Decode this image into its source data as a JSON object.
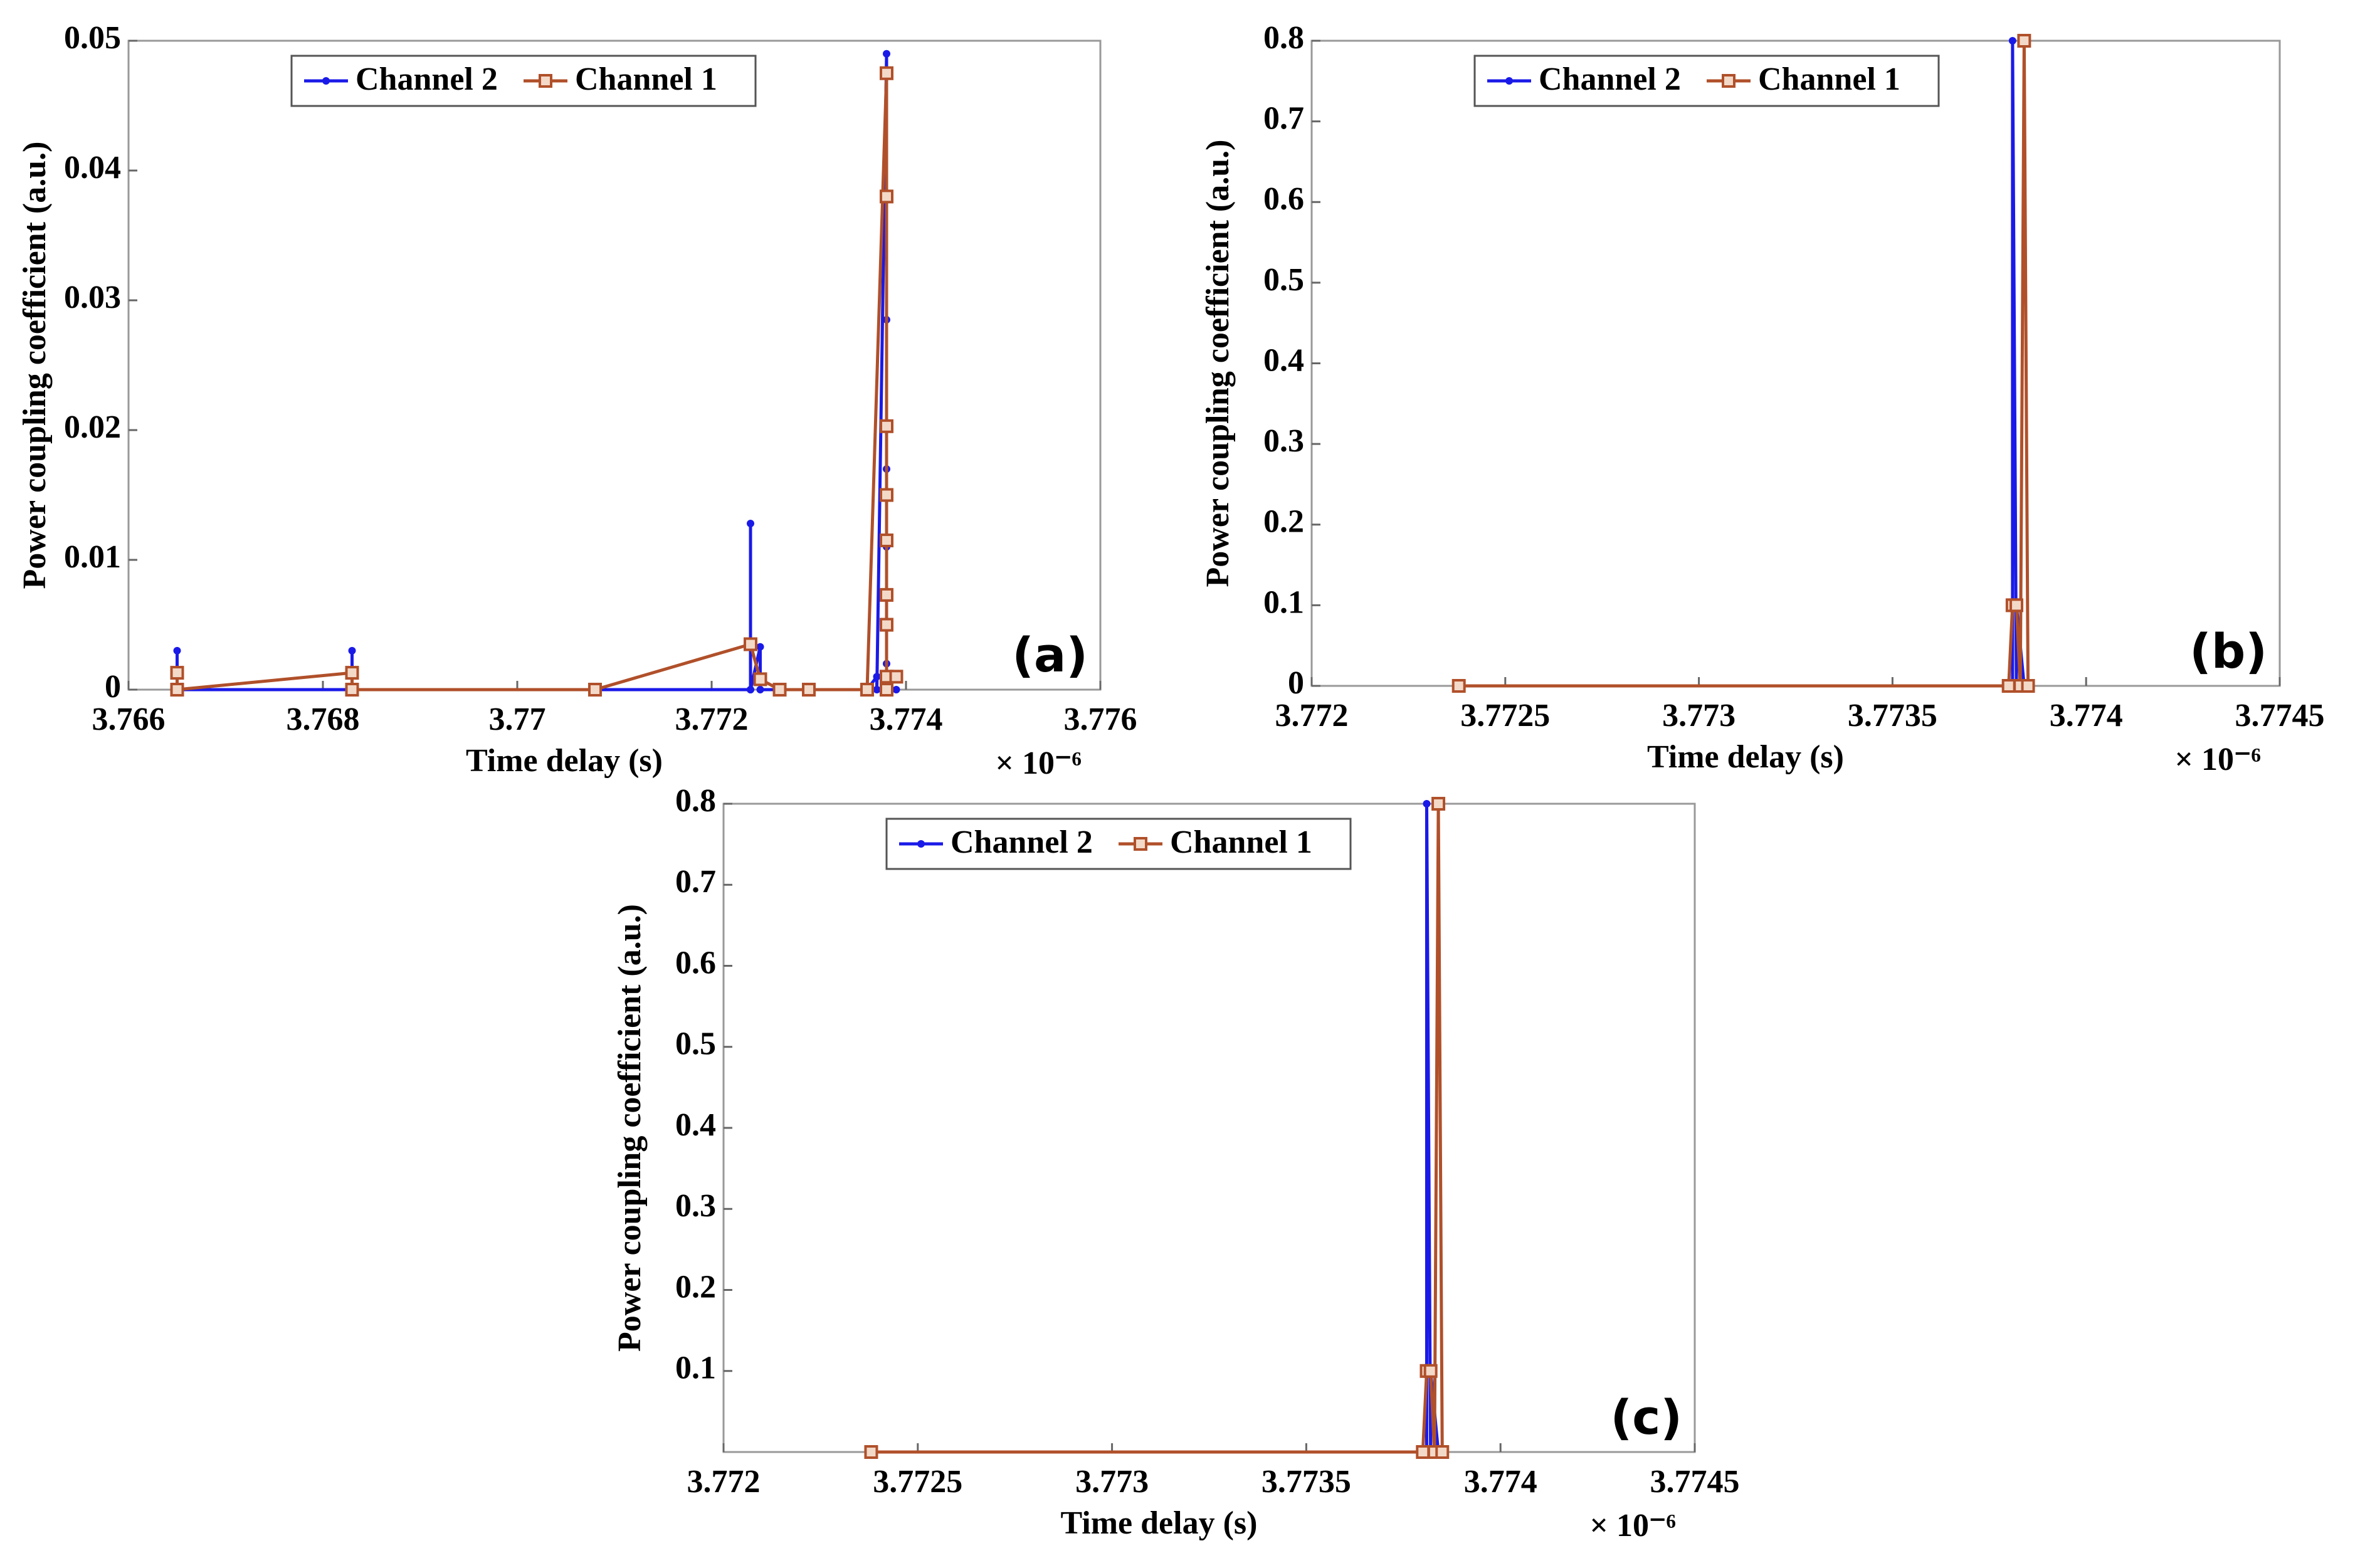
{
  "chart_data": [
    {
      "type": "line",
      "xlabel": "Time delay (s)",
      "ylabel": "Power coupling coefficient (a.u.)",
      "x_multiplier": "× 10⁻⁶",
      "panel_label": "(a)",
      "xlim": [
        3.766,
        3.776
      ],
      "xticks": [
        3.766,
        3.768,
        3.77,
        3.772,
        3.774,
        3.776
      ],
      "ylim": [
        0,
        0.05
      ],
      "yticks": [
        0,
        0.01,
        0.02,
        0.03,
        0.04,
        0.05
      ],
      "grid": false,
      "legend": "top",
      "series": [
        {
          "name": "Channel 2",
          "color": "#1a1ae8",
          "marker": "dot",
          "x": [
            3.7665,
            3.7665,
            3.7665,
            3.7683,
            3.7683,
            3.7683,
            3.7708,
            3.7724,
            3.7724,
            3.7724,
            3.7725,
            3.7725,
            3.7727,
            3.773,
            3.7736,
            3.7737,
            3.7737,
            3.7738,
            3.7738,
            3.7738,
            3.7738,
            3.7738,
            3.7738,
            3.7738,
            3.7739
          ],
          "values": [
            0,
            0.003,
            0,
            0,
            0.003,
            0,
            0,
            0,
            0.0128,
            0,
            0.0033,
            0,
            0,
            0,
            0,
            0.001,
            0,
            0.049,
            0.0285,
            0.017,
            0.011,
            0.005,
            0.002,
            0,
            0
          ]
        },
        {
          "name": "Channel 1",
          "color": "#b0502a",
          "marker": "square",
          "x": [
            3.7665,
            3.7665,
            3.7683,
            3.7683,
            3.7708,
            3.7724,
            3.7725,
            3.7727,
            3.773,
            3.7736,
            3.7738,
            3.7738,
            3.7738,
            3.7738,
            3.7738,
            3.7738,
            3.7738,
            3.7738,
            3.7738,
            3.7739
          ],
          "values": [
            0.0013,
            0,
            0.0013,
            0,
            0,
            0.0035,
            0.0008,
            0,
            0,
            0,
            0.0475,
            0.038,
            0.0203,
            0.015,
            0.0115,
            0.0073,
            0.005,
            0.001,
            0,
            0.001
          ]
        }
      ]
    },
    {
      "type": "line",
      "xlabel": "Time delay (s)",
      "ylabel": "Power coupling coefficient (a.u.)",
      "x_multiplier": "× 10⁻⁶",
      "panel_label": "(b)",
      "xlim": [
        3.772,
        3.7745
      ],
      "xticks": [
        3.772,
        3.7725,
        3.773,
        3.7735,
        3.774,
        3.7745
      ],
      "ylim": [
        0,
        0.8
      ],
      "yticks": [
        0,
        0.1,
        0.2,
        0.3,
        0.4,
        0.5,
        0.6,
        0.7,
        0.8
      ],
      "grid": false,
      "legend": "top",
      "series": [
        {
          "name": "Channel 2",
          "color": "#1a1ae8",
          "marker": "dot",
          "x": [
            3.77238,
            3.77381,
            3.77381,
            3.77382,
            3.77382,
            3.77384
          ],
          "values": [
            0,
            0,
            0.8,
            0,
            0.1,
            0
          ]
        },
        {
          "name": "Channel 1",
          "color": "#b0502a",
          "marker": "square",
          "x": [
            3.77238,
            3.7738,
            3.77381,
            3.77382,
            3.77383,
            3.77384,
            3.77385
          ],
          "values": [
            0,
            0,
            0.1,
            0.1,
            0,
            0.8,
            0
          ]
        }
      ]
    },
    {
      "type": "line",
      "xlabel": "Time delay (s)",
      "ylabel": "Power coupling coefficient (a.u.)",
      "x_multiplier": "× 10⁻⁶",
      "panel_label": "(c)",
      "xlim": [
        3.772,
        3.7745
      ],
      "xticks": [
        3.772,
        3.7725,
        3.773,
        3.7735,
        3.774,
        3.7745
      ],
      "ylim": [
        0,
        0.8
      ],
      "yticks": [
        0.1,
        0.2,
        0.3,
        0.4,
        0.5,
        0.6,
        0.7,
        0.8
      ],
      "grid": false,
      "legend": "top",
      "series": [
        {
          "name": "Channel 2",
          "color": "#1a1ae8",
          "marker": "dot",
          "x": [
            3.77238,
            3.77381,
            3.77381,
            3.77382,
            3.77382,
            3.77384
          ],
          "values": [
            0,
            0,
            0.8,
            0,
            0.1,
            0
          ]
        },
        {
          "name": "Channel 1",
          "color": "#b0502a",
          "marker": "square",
          "x": [
            3.77238,
            3.7738,
            3.77381,
            3.77382,
            3.77383,
            3.77384,
            3.77385
          ],
          "values": [
            0,
            0,
            0.1,
            0.1,
            0,
            0.8,
            0
          ]
        }
      ]
    }
  ]
}
